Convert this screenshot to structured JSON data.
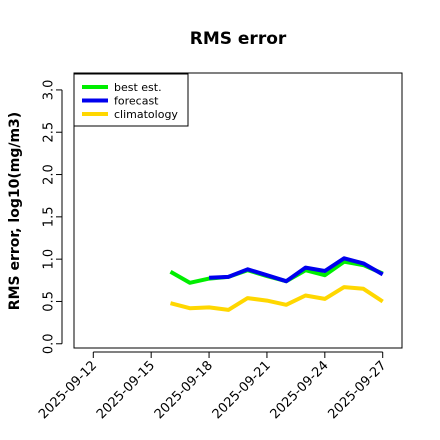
{
  "chart_data": {
    "type": "line",
    "title": "RMS error",
    "xlabel": "",
    "ylabel": "RMS error, log10(mg/m3)",
    "xlim": [
      "2025-09-11",
      "2025-09-28"
    ],
    "ylim": [
      -0.05,
      3.2
    ],
    "x_ticks": [
      "2025-09-12",
      "2025-09-15",
      "2025-09-18",
      "2025-09-21",
      "2025-09-24",
      "2025-09-27"
    ],
    "highlight_tick": "2025-09-18",
    "y_ticks": [
      0.0,
      0.5,
      1.0,
      1.5,
      2.0,
      2.5,
      3.0
    ],
    "y_tick_labels": [
      "0.0",
      "0.5",
      "1.0",
      "1.5",
      "2.0",
      "2.5",
      "3.0"
    ],
    "grid": false,
    "legend_position": "top-left",
    "colors": {
      "best_est": "#00ee00",
      "forecast": "#0000ee",
      "climatology": "#ffd700",
      "highlight_tick": "#228b22"
    },
    "series": [
      {
        "name": "best est.",
        "color_key": "best_est",
        "x": [
          "2025-09-16",
          "2025-09-17",
          "2025-09-18",
          "2025-09-19",
          "2025-09-20",
          "2025-09-21",
          "2025-09-22",
          "2025-09-23",
          "2025-09-24",
          "2025-09-25",
          "2025-09-26",
          "2025-09-27"
        ],
        "y": [
          0.85,
          0.72,
          0.77,
          0.79,
          0.87,
          0.8,
          0.74,
          0.87,
          0.81,
          0.97,
          0.93,
          0.83
        ]
      },
      {
        "name": "forecast",
        "color_key": "forecast",
        "x": [
          "2025-09-18",
          "2025-09-19",
          "2025-09-20",
          "2025-09-21",
          "2025-09-22",
          "2025-09-23",
          "2025-09-24",
          "2025-09-25",
          "2025-09-26",
          "2025-09-27"
        ],
        "y": [
          0.78,
          0.79,
          0.88,
          0.81,
          0.74,
          0.9,
          0.86,
          1.01,
          0.95,
          0.82
        ]
      },
      {
        "name": "climatology",
        "color_key": "climatology",
        "x": [
          "2025-09-16",
          "2025-09-17",
          "2025-09-18",
          "2025-09-19",
          "2025-09-20",
          "2025-09-21",
          "2025-09-22",
          "2025-09-23",
          "2025-09-24",
          "2025-09-25",
          "2025-09-26",
          "2025-09-27"
        ],
        "y": [
          0.48,
          0.42,
          0.43,
          0.4,
          0.54,
          0.51,
          0.46,
          0.57,
          0.53,
          0.67,
          0.65,
          0.5
        ]
      }
    ]
  }
}
